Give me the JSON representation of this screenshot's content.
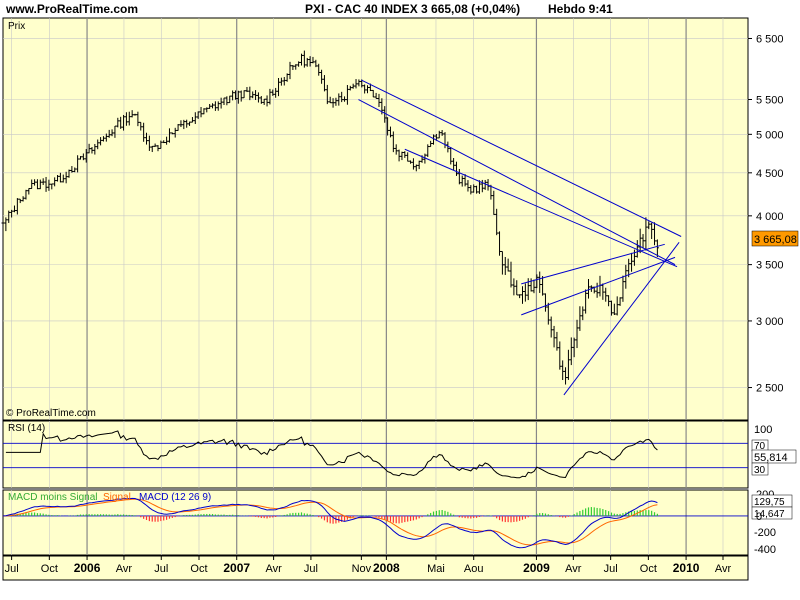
{
  "header": {
    "site": "www.ProRealTime.com",
    "title": "PXI - CAC 40 INDEX    3 665,08 (+0,04%)",
    "period": "Hebdo  9:41"
  },
  "colors": {
    "panel_bg": "#ffffcc",
    "grid": "#c8c8c8",
    "bar": "#000000",
    "trendline": "#0000cc",
    "price_badge": "#ff9900",
    "rsi_line": "#000000",
    "macd_line": "#0000cc",
    "signal_line": "#ff6600",
    "hist_pos": "#33cc33",
    "hist_neg": "#ff3333"
  },
  "price_panel": {
    "label": "Prix",
    "watermark": "© ProRealTime.com",
    "last_price": "3 665,08"
  },
  "rsi_panel": {
    "label": "RSI (14)",
    "value": "55,814",
    "levels": [
      "100",
      "70",
      "30"
    ]
  },
  "macd_panel": {
    "label_a": "MACD moins Signal",
    "label_b": "Signal",
    "label_c": "MACD (12 26 9)",
    "value_1": "129,75",
    "value_2": "14,647",
    "ticks": [
      "200",
      "0",
      "-200",
      "-400"
    ]
  },
  "chart_data": {
    "type": "bar",
    "scale": "log",
    "ylim": [
      2300,
      6800
    ],
    "y_ticks": [
      "6 500",
      "5 500",
      "5 000",
      "4 500",
      "4 000",
      "3 500",
      "3 000",
      "2 500"
    ],
    "y_tick_values": [
      6500,
      5500,
      5000,
      4500,
      4000,
      3500,
      3000,
      2500
    ],
    "xlim": [
      "2005-06-10",
      "2010-06-01"
    ],
    "x_ticks": [
      {
        "label": "Jul",
        "date": "2005-07-01",
        "bold": false
      },
      {
        "label": "Oct",
        "date": "2005-10-01",
        "bold": false
      },
      {
        "label": "2006",
        "date": "2006-01-01",
        "bold": true
      },
      {
        "label": "Avr",
        "date": "2006-04-01",
        "bold": false
      },
      {
        "label": "Jul",
        "date": "2006-07-01",
        "bold": false
      },
      {
        "label": "Oct",
        "date": "2006-10-01",
        "bold": false
      },
      {
        "label": "2007",
        "date": "2007-01-01",
        "bold": true
      },
      {
        "label": "Avr",
        "date": "2007-04-01",
        "bold": false
      },
      {
        "label": "Jul",
        "date": "2007-07-01",
        "bold": false
      },
      {
        "label": "Nov",
        "date": "2007-11-01",
        "bold": false
      },
      {
        "label": "2008",
        "date": "2008-01-01",
        "bold": true
      },
      {
        "label": "Mai",
        "date": "2008-05-01",
        "bold": false
      },
      {
        "label": "Aou",
        "date": "2008-08-01",
        "bold": false
      },
      {
        "label": "2009",
        "date": "2009-01-01",
        "bold": true
      },
      {
        "label": "Avr",
        "date": "2009-04-01",
        "bold": false
      },
      {
        "label": "Jul",
        "date": "2009-07-01",
        "bold": false
      },
      {
        "label": "Oct",
        "date": "2009-10-01",
        "bold": false
      },
      {
        "label": "2010",
        "date": "2010-01-01",
        "bold": true
      },
      {
        "label": "Avr",
        "date": "2010-04-01",
        "bold": false
      }
    ],
    "anchors": [
      [
        "2005-06-10",
        3900
      ],
      [
        "2005-08-10",
        4330
      ],
      [
        "2005-10-20",
        4400
      ],
      [
        "2005-12-30",
        4720
      ],
      [
        "2006-02-20",
        5000
      ],
      [
        "2006-04-20",
        5300
      ],
      [
        "2006-06-10",
        4800
      ],
      [
        "2006-08-20",
        5120
      ],
      [
        "2006-11-10",
        5420
      ],
      [
        "2007-01-10",
        5600
      ],
      [
        "2007-03-10",
        5470
      ],
      [
        "2007-04-20",
        5800
      ],
      [
        "2007-06-05",
        6150
      ],
      [
        "2007-07-10",
        6050
      ],
      [
        "2007-08-10",
        5500
      ],
      [
        "2007-09-20",
        5550
      ],
      [
        "2007-10-20",
        5800
      ],
      [
        "2007-12-10",
        5550
      ],
      [
        "2008-01-20",
        4800
      ],
      [
        "2008-03-15",
        4600
      ],
      [
        "2008-05-10",
        5080
      ],
      [
        "2008-06-20",
        4450
      ],
      [
        "2008-07-20",
        4300
      ],
      [
        "2008-09-05",
        4350
      ],
      [
        "2008-10-10",
        3500
      ],
      [
        "2008-11-20",
        3200
      ],
      [
        "2009-01-05",
        3350
      ],
      [
        "2009-02-10",
        2900
      ],
      [
        "2009-03-09",
        2550
      ],
      [
        "2009-05-05",
        3250
      ],
      [
        "2009-06-10",
        3280
      ],
      [
        "2009-07-10",
        3050
      ],
      [
        "2009-08-10",
        3450
      ],
      [
        "2009-09-20",
        3800
      ],
      [
        "2009-10-05",
        3900
      ],
      [
        "2009-10-23",
        3665
      ]
    ],
    "trendlines": [
      {
        "from": [
          "2007-11-01",
          5800
        ],
        "to": [
          "2009-12-20",
          3780
        ]
      },
      {
        "from": [
          "2007-10-25",
          5500
        ],
        "to": [
          "2009-12-05",
          3500
        ]
      },
      {
        "from": [
          "2008-02-15",
          4800
        ],
        "to": [
          "2009-12-10",
          3480
        ]
      },
      {
        "from": [
          "2008-11-25",
          3320
        ],
        "to": [
          "2009-11-10",
          3700
        ]
      },
      {
        "from": [
          "2008-11-25",
          3050
        ],
        "to": [
          "2009-12-05",
          3570
        ]
      },
      {
        "from": [
          "2009-03-09",
          2450
        ],
        "to": [
          "2009-12-15",
          3720
        ]
      }
    ]
  }
}
